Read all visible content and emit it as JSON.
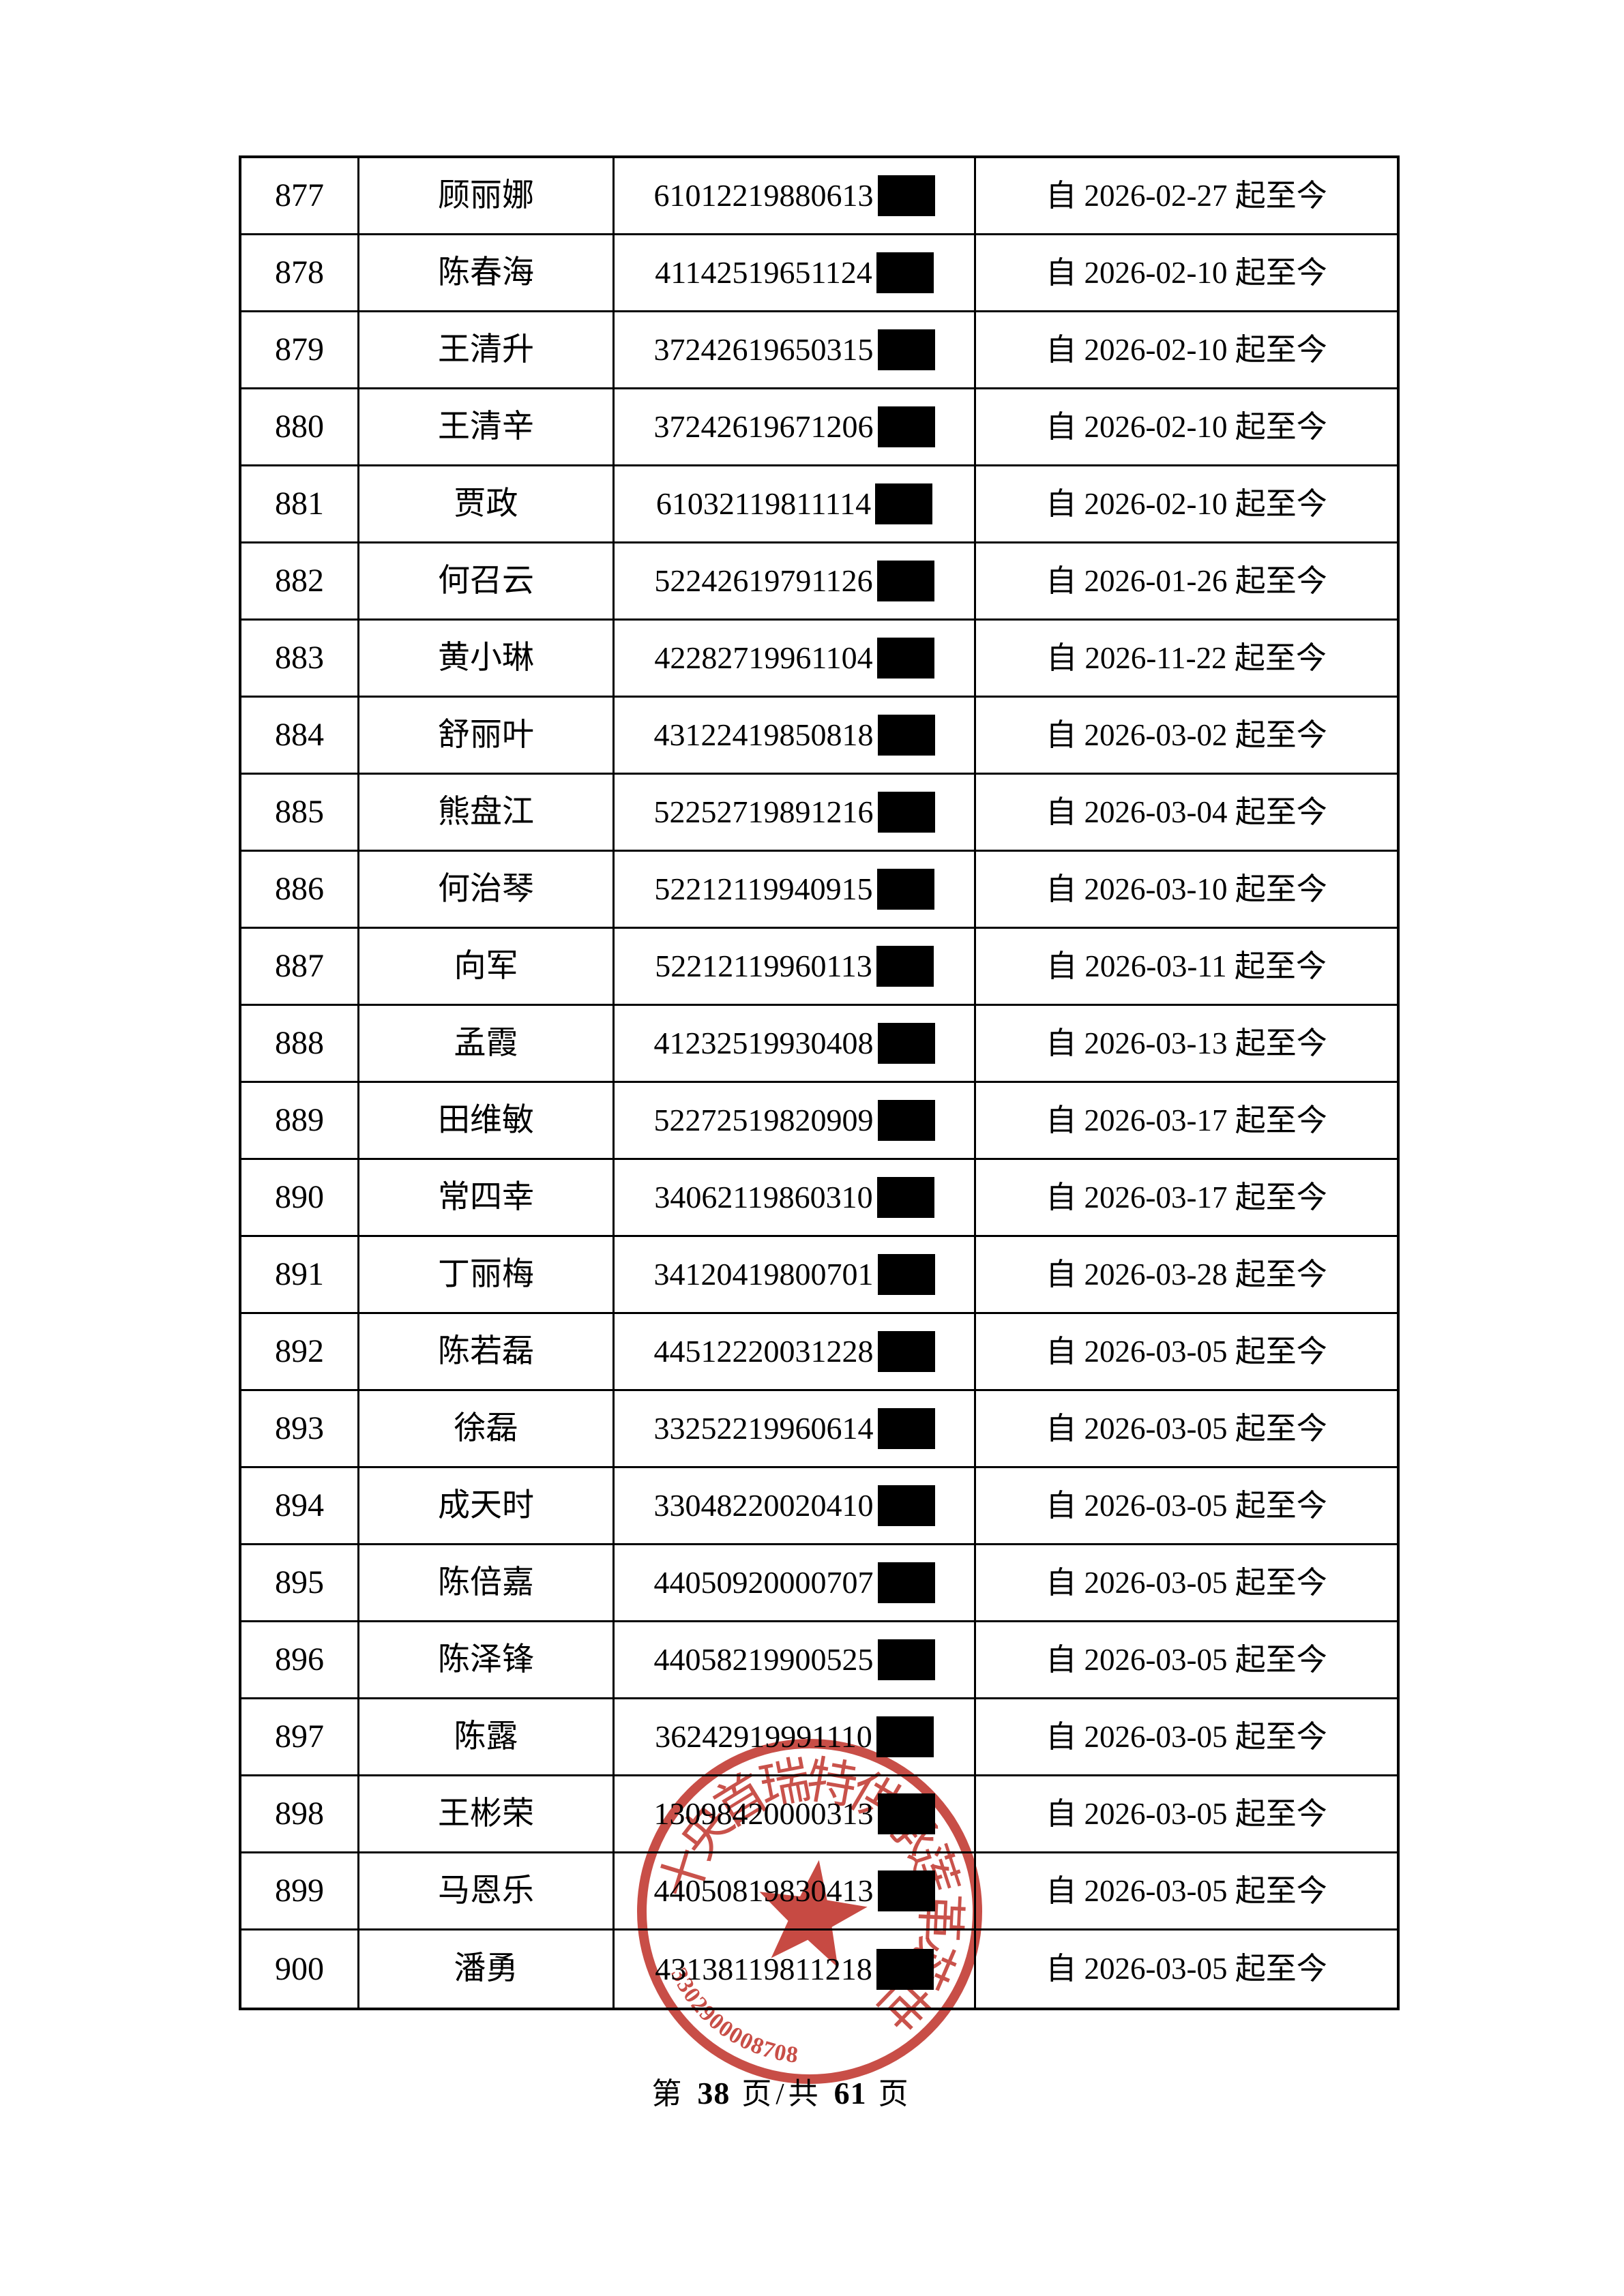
{
  "table": {
    "rows": [
      {
        "no": "877",
        "name": "顾丽娜",
        "id_visible": "61012219880613",
        "date_text": "自 2026-02-27 起至今"
      },
      {
        "no": "878",
        "name": "陈春海",
        "id_visible": "41142519651124",
        "date_text": "自 2026-02-10 起至今"
      },
      {
        "no": "879",
        "name": "王清升",
        "id_visible": "37242619650315",
        "date_text": "自 2026-02-10 起至今"
      },
      {
        "no": "880",
        "name": "王清辛",
        "id_visible": "37242619671206",
        "date_text": "自 2026-02-10 起至今"
      },
      {
        "no": "881",
        "name": "贾政",
        "id_visible": "61032119811114",
        "date_text": "自 2026-02-10 起至今"
      },
      {
        "no": "882",
        "name": "何召云",
        "id_visible": "52242619791126",
        "date_text": "自 2026-01-26 起至今"
      },
      {
        "no": "883",
        "name": "黄小琳",
        "id_visible": "42282719961104",
        "date_text": "自 2026-11-22 起至今"
      },
      {
        "no": "884",
        "name": "舒丽叶",
        "id_visible": "43122419850818",
        "date_text": "自 2026-03-02 起至今"
      },
      {
        "no": "885",
        "name": "熊盘江",
        "id_visible": "52252719891216",
        "date_text": "自 2026-03-04 起至今"
      },
      {
        "no": "886",
        "name": "何治琴",
        "id_visible": "52212119940915",
        "date_text": "自 2026-03-10 起至今"
      },
      {
        "no": "887",
        "name": "向军",
        "id_visible": "52212119960113",
        "date_text": "自 2026-03-11 起至今"
      },
      {
        "no": "888",
        "name": "孟霞",
        "id_visible": "41232519930408",
        "date_text": "自 2026-03-13 起至今"
      },
      {
        "no": "889",
        "name": "田维敏",
        "id_visible": "52272519820909",
        "date_text": "自 2026-03-17 起至今"
      },
      {
        "no": "890",
        "name": "常四幸",
        "id_visible": "34062119860310",
        "date_text": "自 2026-03-17 起至今"
      },
      {
        "no": "891",
        "name": "丁丽梅",
        "id_visible": "34120419800701",
        "date_text": "自 2026-03-28 起至今"
      },
      {
        "no": "892",
        "name": "陈若磊",
        "id_visible": "44512220031228",
        "date_text": "自 2026-03-05 起至今"
      },
      {
        "no": "893",
        "name": "徐磊",
        "id_visible": "33252219960614",
        "date_text": "自 2026-03-05 起至今"
      },
      {
        "no": "894",
        "name": "成天时",
        "id_visible": "33048220020410",
        "date_text": "自 2026-03-05 起至今"
      },
      {
        "no": "895",
        "name": "陈倍嘉",
        "id_visible": "44050920000707",
        "date_text": "自 2026-03-05 起至今"
      },
      {
        "no": "896",
        "name": "陈泽锋",
        "id_visible": "44058219900525",
        "date_text": "自 2026-03-05 起至今"
      },
      {
        "no": "897",
        "name": "陈露",
        "id_visible": "36242919991110",
        "date_text": "自 2026-03-05 起至今"
      },
      {
        "no": "898",
        "name": "王彬荣",
        "id_visible": "13098420000313",
        "date_text": "自 2026-03-05 起至今"
      },
      {
        "no": "899",
        "name": "马恩乐",
        "id_visible": "44050819830413",
        "date_text": "自 2026-03-05 起至今"
      },
      {
        "no": "900",
        "name": "潘勇",
        "id_visible": "43138119811218",
        "date_text": "自 2026-03-05 起至今"
      }
    ]
  },
  "seal": {
    "ring_text_best_effort": "十央首瑞特供承莲革苾世",
    "serial_number": "3302900008708",
    "color": "#c23b33"
  },
  "footer": {
    "prefix": "第",
    "page_number": "38",
    "middle": "页/共",
    "total_pages": "61",
    "suffix": "页"
  }
}
